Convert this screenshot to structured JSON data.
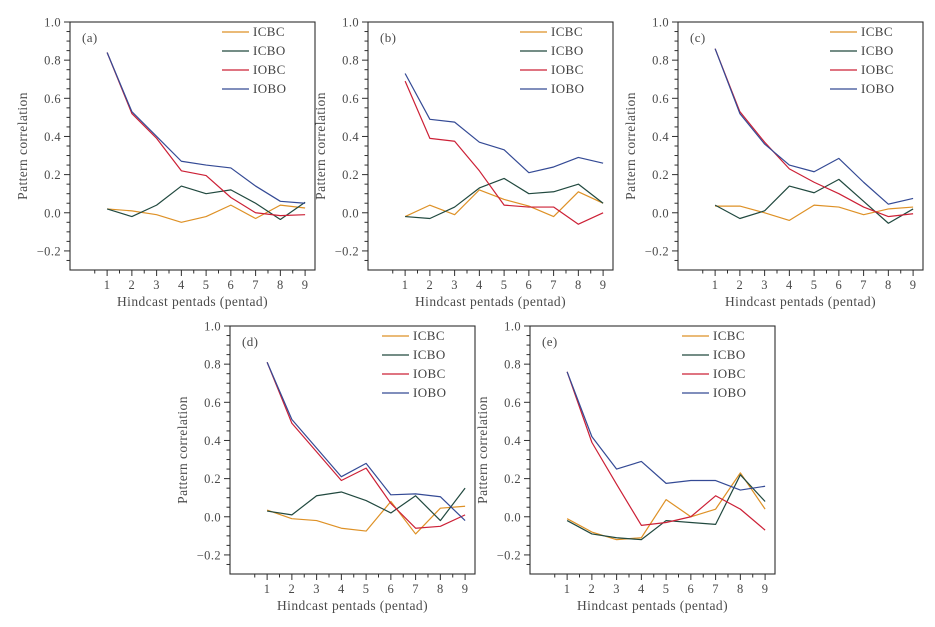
{
  "figure": {
    "background": "#ffffff",
    "text_color": "#4a4a4a",
    "axis_color": "#2e2e2e",
    "xlabel": "Hindcast pentads (pentad)",
    "ylabel": "Pattern correlation",
    "x_ticks": [
      1,
      2,
      3,
      4,
      5,
      6,
      7,
      8,
      9
    ],
    "y_ticks": [
      1.0,
      0.8,
      0.6,
      0.4,
      0.2,
      0.0,
      -0.2
    ],
    "y_tick_labels": [
      "1.0",
      "0.8",
      "0.6",
      "0.4",
      "0.2",
      "0.0",
      "−0.2"
    ],
    "xlim": [
      -0.5,
      9.4
    ],
    "ylim": [
      -0.3,
      1.0
    ],
    "grid": false,
    "legend_position": "upper right",
    "legend": [
      "ICBC",
      "ICBO",
      "IOBC",
      "IOBO"
    ],
    "colors": {
      "ICBC": "#DE9126",
      "ICBO": "#21493F",
      "IOBC": "#CC2036",
      "IOBO": "#344A95"
    }
  },
  "chart_data": [
    {
      "type": "line",
      "panel_label": "(a)",
      "xlabel": "Hindcast pentads (pentad)",
      "ylabel": "Pattern correlation",
      "xlim": [
        -0.5,
        9.4
      ],
      "ylim": [
        -0.3,
        1.0
      ],
      "x": [
        1,
        2,
        3,
        4,
        5,
        6,
        7,
        8,
        9
      ],
      "series": [
        {
          "name": "ICBC",
          "values": [
            0.02,
            0.01,
            -0.01,
            -0.05,
            -0.02,
            0.04,
            -0.03,
            0.04,
            0.025
          ]
        },
        {
          "name": "ICBO",
          "values": [
            0.02,
            -0.02,
            0.04,
            0.14,
            0.1,
            0.12,
            0.05,
            -0.035,
            0.055
          ]
        },
        {
          "name": "IOBC",
          "values": [
            0.84,
            0.52,
            0.39,
            0.22,
            0.195,
            0.08,
            0.0,
            -0.015,
            -0.01
          ]
        },
        {
          "name": "IOBO",
          "values": [
            0.84,
            0.53,
            0.4,
            0.27,
            0.25,
            0.235,
            0.14,
            0.06,
            0.05
          ]
        }
      ]
    },
    {
      "type": "line",
      "panel_label": "(b)",
      "xlabel": "Hindcast pentads (pentad)",
      "ylabel": "Pattern correlation",
      "xlim": [
        -0.5,
        9.4
      ],
      "ylim": [
        -0.3,
        1.0
      ],
      "x": [
        1,
        2,
        3,
        4,
        5,
        6,
        7,
        8,
        9
      ],
      "series": [
        {
          "name": "ICBC",
          "values": [
            -0.02,
            0.04,
            -0.01,
            0.12,
            0.07,
            0.035,
            -0.02,
            0.11,
            0.05
          ]
        },
        {
          "name": "ICBO",
          "values": [
            -0.02,
            -0.03,
            0.03,
            0.13,
            0.18,
            0.1,
            0.11,
            0.15,
            0.05
          ]
        },
        {
          "name": "IOBC",
          "values": [
            0.69,
            0.39,
            0.375,
            0.22,
            0.04,
            0.03,
            0.03,
            -0.06,
            0.0
          ]
        },
        {
          "name": "IOBO",
          "values": [
            0.73,
            0.49,
            0.475,
            0.37,
            0.33,
            0.21,
            0.24,
            0.29,
            0.26
          ]
        }
      ]
    },
    {
      "type": "line",
      "panel_label": "(c)",
      "xlabel": "Hindcast pentads (pentad)",
      "ylabel": "Pattern correlation",
      "xlim": [
        -0.5,
        9.4
      ],
      "ylim": [
        -0.3,
        1.0
      ],
      "x": [
        1,
        2,
        3,
        4,
        5,
        6,
        7,
        8,
        9
      ],
      "series": [
        {
          "name": "ICBC",
          "values": [
            0.035,
            0.035,
            0.0,
            -0.04,
            0.04,
            0.03,
            -0.01,
            0.02,
            0.03
          ]
        },
        {
          "name": "ICBO",
          "values": [
            0.04,
            -0.03,
            0.01,
            0.14,
            0.105,
            0.175,
            0.06,
            -0.055,
            0.02
          ]
        },
        {
          "name": "IOBC",
          "values": [
            0.86,
            0.53,
            0.37,
            0.23,
            0.16,
            0.1,
            0.03,
            -0.02,
            -0.005
          ]
        },
        {
          "name": "IOBO",
          "values": [
            0.86,
            0.52,
            0.36,
            0.25,
            0.215,
            0.285,
            0.16,
            0.045,
            0.075
          ]
        }
      ]
    },
    {
      "type": "line",
      "panel_label": "(d)",
      "xlabel": "Hindcast pentads (pentad)",
      "ylabel": "Pattern correlation",
      "xlim": [
        -0.5,
        9.4
      ],
      "ylim": [
        -0.3,
        1.0
      ],
      "x": [
        1,
        2,
        3,
        4,
        5,
        6,
        7,
        8,
        9
      ],
      "series": [
        {
          "name": "ICBC",
          "values": [
            0.035,
            -0.01,
            -0.02,
            -0.06,
            -0.075,
            0.08,
            -0.09,
            0.045,
            0.055
          ]
        },
        {
          "name": "ICBO",
          "values": [
            0.03,
            0.01,
            0.11,
            0.13,
            0.085,
            0.02,
            0.11,
            -0.02,
            0.15
          ]
        },
        {
          "name": "IOBC",
          "values": [
            0.81,
            0.49,
            0.34,
            0.19,
            0.255,
            0.07,
            -0.06,
            -0.05,
            0.01
          ]
        },
        {
          "name": "IOBO",
          "values": [
            0.81,
            0.51,
            0.36,
            0.21,
            0.28,
            0.115,
            0.12,
            0.105,
            -0.02
          ]
        }
      ]
    },
    {
      "type": "line",
      "panel_label": "(e)",
      "xlabel": "Hindcast pentads (pentad)",
      "ylabel": "Pattern correlation",
      "xlim": [
        -0.5,
        9.4
      ],
      "ylim": [
        -0.3,
        1.0
      ],
      "x": [
        1,
        2,
        3,
        4,
        5,
        6,
        7,
        8,
        9
      ],
      "series": [
        {
          "name": "ICBC",
          "values": [
            -0.01,
            -0.08,
            -0.12,
            -0.11,
            0.09,
            0.0,
            0.04,
            0.23,
            0.04
          ]
        },
        {
          "name": "ICBO",
          "values": [
            -0.02,
            -0.09,
            -0.11,
            -0.12,
            -0.02,
            -0.03,
            -0.04,
            0.22,
            0.08
          ]
        },
        {
          "name": "IOBC",
          "values": [
            0.76,
            0.39,
            0.17,
            -0.045,
            -0.03,
            0.0,
            0.11,
            0.04,
            -0.07
          ]
        },
        {
          "name": "IOBO",
          "values": [
            0.76,
            0.42,
            0.25,
            0.29,
            0.175,
            0.19,
            0.19,
            0.14,
            0.16
          ]
        }
      ]
    }
  ]
}
